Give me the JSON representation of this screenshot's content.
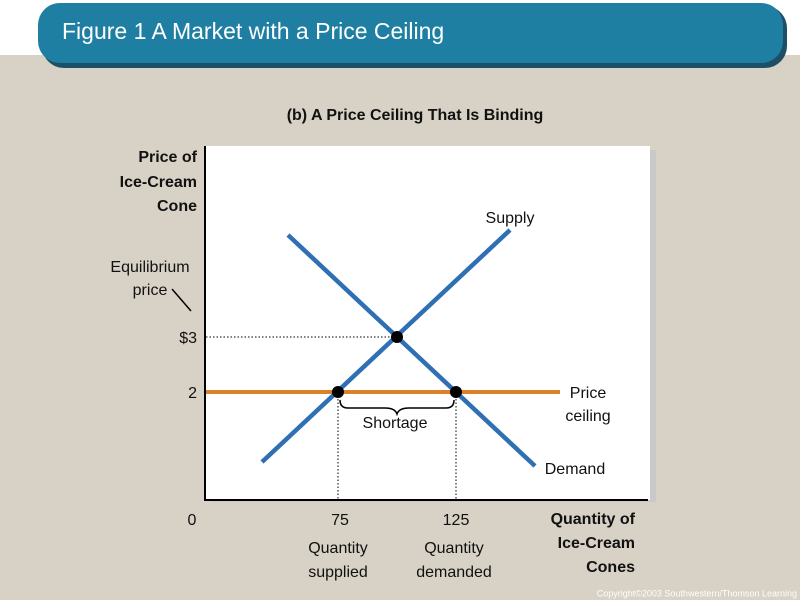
{
  "header": {
    "title": "Figure 1 A Market with a Price Ceiling"
  },
  "figure": {
    "subtitle": "(b) A Price Ceiling That Is Binding",
    "y_axis_label": [
      "Price of",
      "Ice-Cream",
      "Cone"
    ],
    "x_axis_label": [
      "Quantity of",
      "Ice-Cream",
      "Cones"
    ],
    "y_ticks": [
      "$3",
      "2",
      "0"
    ],
    "x_ticks": [
      "75",
      "125"
    ],
    "equilibrium_label": [
      "Equilibrium",
      "price"
    ],
    "supply_label": "Supply",
    "demand_label": "Demand",
    "price_ceiling_label": [
      "Price",
      "ceiling"
    ],
    "shortage_label": "Shortage",
    "quantity_supplied_label": [
      "Quantity",
      "supplied"
    ],
    "quantity_demanded_label": [
      "Quantity",
      "demanded"
    ]
  },
  "footer": {
    "copyright": "Copyright©2003  Southwestern/Thomson Learning"
  }
}
